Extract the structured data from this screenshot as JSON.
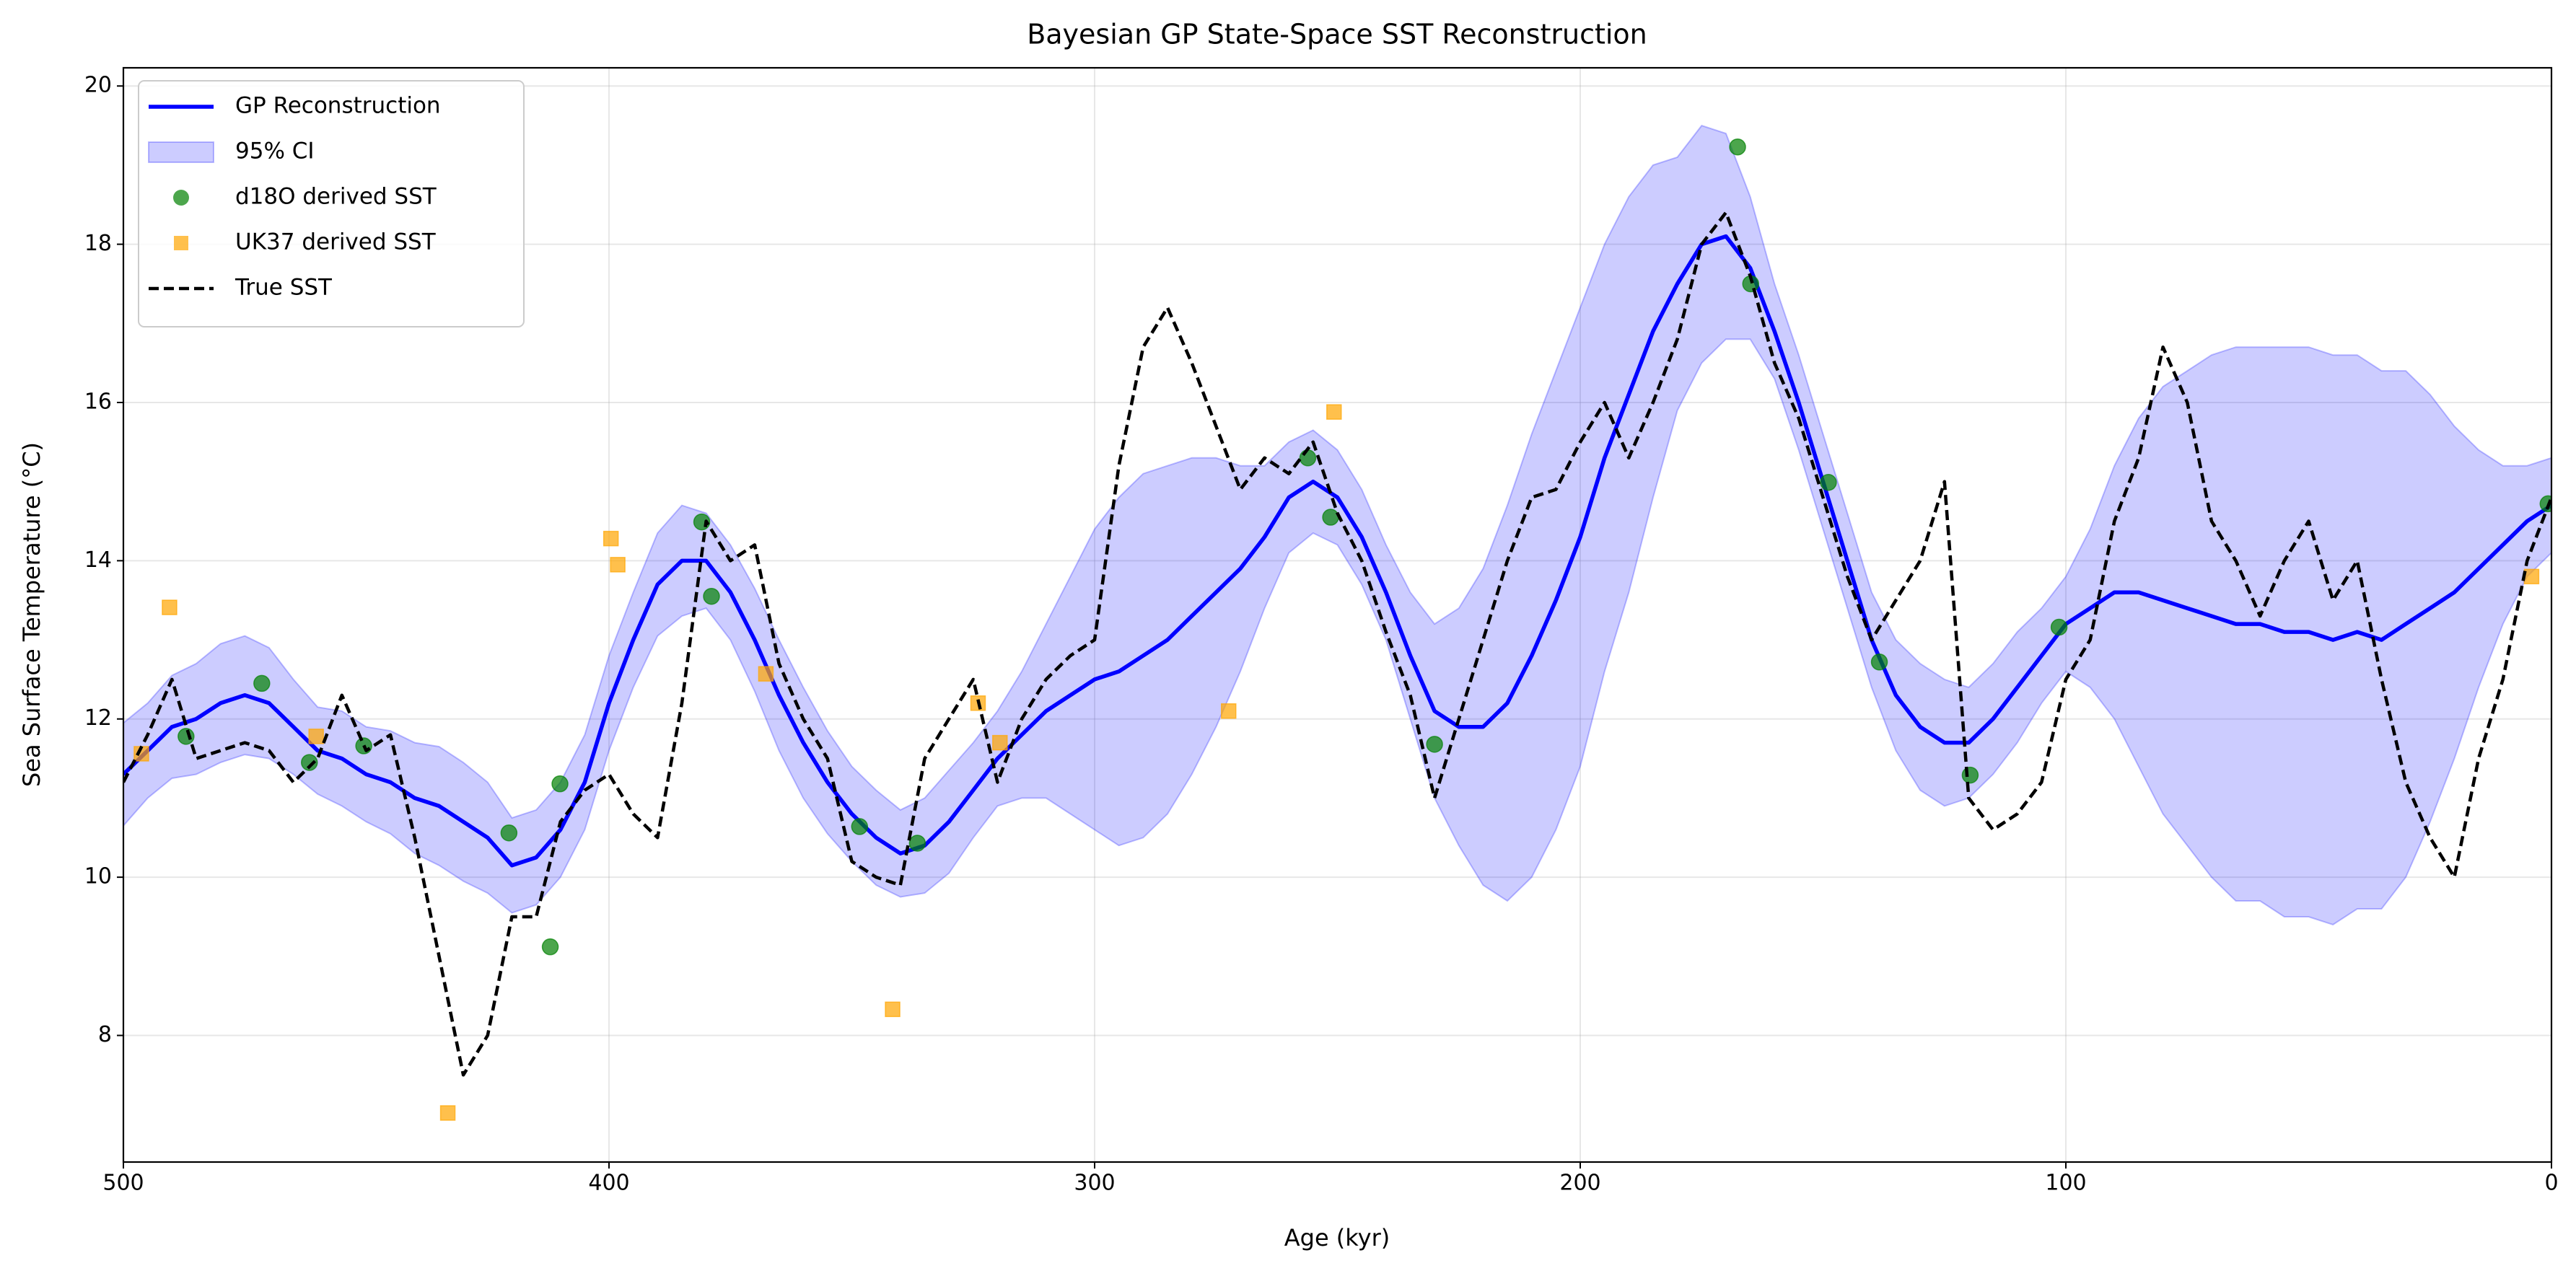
{
  "chart_data": {
    "type": "line",
    "title": "Bayesian GP State-Space SST Reconstruction",
    "xlabel": "Age (kyr)",
    "ylabel": "Sea Surface Temperature (°C)",
    "xlim": [
      500,
      0
    ],
    "ylim": [
      6.4,
      20.23
    ],
    "xticks": [
      500,
      400,
      300,
      200,
      100,
      0
    ],
    "yticks": [
      8,
      10,
      12,
      14,
      16,
      18,
      20
    ],
    "grid": true,
    "legend": "upper left",
    "x": [
      500,
      495,
      490,
      485,
      480,
      475,
      470,
      465,
      460,
      455,
      450,
      445,
      440,
      435,
      430,
      425,
      420,
      415,
      410,
      405,
      400,
      395,
      390,
      385,
      380,
      375,
      370,
      365,
      360,
      355,
      350,
      345,
      340,
      335,
      330,
      325,
      320,
      315,
      310,
      305,
      300,
      295,
      290,
      285,
      280,
      275,
      270,
      265,
      260,
      255,
      250,
      245,
      240,
      235,
      230,
      225,
      220,
      215,
      210,
      205,
      200,
      195,
      190,
      185,
      180,
      175,
      170,
      165,
      160,
      155,
      150,
      145,
      140,
      135,
      130,
      125,
      120,
      115,
      110,
      105,
      100,
      95,
      90,
      85,
      80,
      75,
      70,
      65,
      60,
      55,
      50,
      45,
      40,
      35,
      30,
      25,
      20,
      15,
      10,
      5,
      0
    ],
    "series": [
      {
        "name": "GP Reconstruction",
        "type": "line",
        "color": "#0000ff",
        "values": [
          11.3,
          11.6,
          11.9,
          12.0,
          12.2,
          12.3,
          12.2,
          11.9,
          11.6,
          11.5,
          11.3,
          11.2,
          11.0,
          10.9,
          10.7,
          10.5,
          10.15,
          10.25,
          10.6,
          11.2,
          12.2,
          13.0,
          13.7,
          14.0,
          14.0,
          13.6,
          13.0,
          12.3,
          11.7,
          11.2,
          10.8,
          10.5,
          10.3,
          10.4,
          10.7,
          11.1,
          11.5,
          11.8,
          12.1,
          12.3,
          12.5,
          12.6,
          12.8,
          13.0,
          13.3,
          13.6,
          13.9,
          14.3,
          14.8,
          15.0,
          14.8,
          14.3,
          13.6,
          12.8,
          12.1,
          11.9,
          11.9,
          12.2,
          12.8,
          13.5,
          14.3,
          15.3,
          16.1,
          16.9,
          17.5,
          18.0,
          18.1,
          17.7,
          16.9,
          16.0,
          15.0,
          14.0,
          13.0,
          12.3,
          11.9,
          11.7,
          11.7,
          12.0,
          12.4,
          12.8,
          13.2,
          13.4,
          13.6,
          13.6,
          13.5,
          13.4,
          13.3,
          13.2,
          13.2,
          13.1,
          13.1,
          13.0,
          13.1,
          13.0,
          13.2,
          13.4,
          13.6,
          13.9,
          14.2,
          14.5,
          14.7
        ]
      },
      {
        "name": "95% CI",
        "type": "band",
        "color": "#0000ff",
        "lower": [
          10.65,
          11.0,
          11.25,
          11.3,
          11.45,
          11.55,
          11.5,
          11.3,
          11.05,
          10.9,
          10.7,
          10.55,
          10.3,
          10.15,
          9.95,
          9.8,
          9.55,
          9.65,
          10.0,
          10.6,
          11.6,
          12.4,
          13.05,
          13.3,
          13.4,
          13.0,
          12.35,
          11.6,
          11.0,
          10.55,
          10.2,
          9.9,
          9.75,
          9.8,
          10.05,
          10.5,
          10.9,
          11.0,
          11.0,
          10.8,
          10.6,
          10.4,
          10.5,
          10.8,
          11.3,
          11.9,
          12.6,
          13.4,
          14.1,
          14.35,
          14.2,
          13.7,
          13.0,
          12.0,
          11.0,
          10.4,
          9.9,
          9.7,
          10.0,
          10.6,
          11.4,
          12.6,
          13.6,
          14.8,
          15.9,
          16.5,
          16.8,
          16.8,
          16.3,
          15.4,
          14.4,
          13.4,
          12.4,
          11.6,
          11.1,
          10.9,
          11.0,
          11.3,
          11.7,
          12.2,
          12.6,
          12.4,
          12.0,
          11.4,
          10.8,
          10.4,
          10.0,
          9.7,
          9.7,
          9.5,
          9.5,
          9.4,
          9.6,
          9.6,
          10.0,
          10.7,
          11.5,
          12.4,
          13.2,
          13.8,
          14.1
        ],
        "upper": [
          11.95,
          12.2,
          12.55,
          12.7,
          12.95,
          13.05,
          12.9,
          12.5,
          12.15,
          12.1,
          11.9,
          11.85,
          11.7,
          11.65,
          11.45,
          11.2,
          10.75,
          10.85,
          11.2,
          11.8,
          12.8,
          13.6,
          14.35,
          14.7,
          14.6,
          14.2,
          13.65,
          13.0,
          12.4,
          11.85,
          11.4,
          11.1,
          10.85,
          11.0,
          11.35,
          11.7,
          12.1,
          12.6,
          13.2,
          13.8,
          14.4,
          14.8,
          15.1,
          15.2,
          15.3,
          15.3,
          15.2,
          15.2,
          15.5,
          15.65,
          15.4,
          14.9,
          14.2,
          13.6,
          13.2,
          13.4,
          13.9,
          14.7,
          15.6,
          16.4,
          17.2,
          18.0,
          18.6,
          19.0,
          19.1,
          19.5,
          19.4,
          18.6,
          17.5,
          16.6,
          15.6,
          14.6,
          13.6,
          13.0,
          12.7,
          12.5,
          12.4,
          12.7,
          13.1,
          13.4,
          13.8,
          14.4,
          15.2,
          15.8,
          16.2,
          16.4,
          16.6,
          16.7,
          16.7,
          16.7,
          16.7,
          16.6,
          16.6,
          16.4,
          16.4,
          16.1,
          15.7,
          15.4,
          15.2,
          15.2,
          15.3
        ]
      },
      {
        "name": "d18O derived SST",
        "type": "scatter",
        "marker": "circle",
        "color": "#008000",
        "x": [
          487.1,
          471.5,
          461.7,
          450.5,
          420.6,
          412.1,
          410.1,
          380.9,
          378.9,
          348.4,
          336.5,
          256.1,
          251.4,
          230.0,
          167.6,
          164.9,
          148.9,
          138.4,
          119.7,
          101.4,
          0.7
        ],
        "values": [
          11.78,
          12.45,
          11.45,
          11.66,
          10.56,
          9.12,
          11.18,
          14.49,
          13.55,
          10.64,
          10.43,
          15.3,
          14.55,
          11.68,
          19.23,
          17.5,
          14.99,
          12.72,
          11.29,
          13.16,
          14.72
        ]
      },
      {
        "name": "UK37 derived SST",
        "type": "scatter",
        "marker": "square",
        "color": "#ffa500",
        "x": [
          496.3,
          490.5,
          460.3,
          433.2,
          399.6,
          398.2,
          367.7,
          341.6,
          324.0,
          319.5,
          272.4,
          250.7,
          4.1
        ],
        "values": [
          11.56,
          13.41,
          11.78,
          7.02,
          14.28,
          13.95,
          12.57,
          8.33,
          12.2,
          11.7,
          12.1,
          15.88,
          13.8
        ]
      },
      {
        "name": "True SST",
        "type": "line",
        "style": "dashed",
        "color": "#000000",
        "values": [
          11.2,
          11.8,
          12.5,
          11.5,
          11.6,
          11.7,
          11.6,
          11.2,
          11.5,
          12.3,
          11.6,
          11.8,
          10.5,
          9.0,
          7.5,
          8.0,
          9.5,
          9.5,
          10.7,
          11.1,
          11.3,
          10.8,
          10.5,
          12.2,
          14.5,
          14.0,
          14.2,
          12.7,
          12.0,
          11.5,
          10.2,
          10.0,
          9.9,
          11.5,
          12.0,
          12.5,
          11.2,
          12.0,
          12.5,
          12.8,
          13.0,
          15.2,
          16.7,
          17.2,
          16.5,
          15.7,
          14.9,
          15.3,
          15.1,
          15.5,
          14.6,
          14.0,
          13.1,
          12.3,
          11.0,
          12.0,
          13.0,
          14.0,
          14.8,
          14.9,
          15.5,
          16.0,
          15.3,
          16.0,
          16.8,
          18.0,
          18.4,
          17.6,
          16.5,
          15.8,
          14.8,
          13.8,
          13.0,
          13.5,
          14.0,
          15.0,
          11.0,
          10.6,
          10.8,
          11.2,
          12.5,
          13.0,
          14.5,
          15.3,
          16.7,
          16.0,
          14.5,
          14.0,
          13.3,
          14.0,
          14.5,
          13.5,
          14.0,
          12.5,
          11.2,
          10.5,
          10.0,
          11.5,
          12.5,
          14.0,
          14.8
        ]
      }
    ]
  }
}
